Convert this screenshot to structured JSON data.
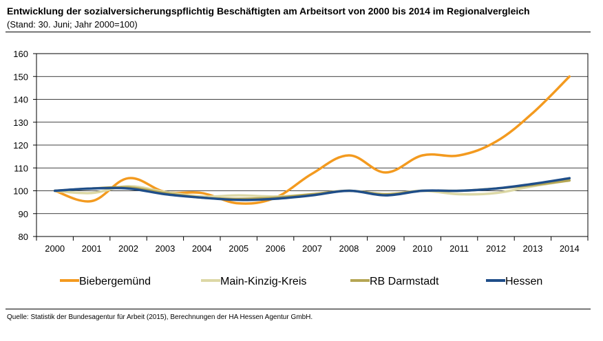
{
  "title": "Entwicklung der sozialversicherungspflichtig Beschäftigten am Arbeitsort von 2000 bis 2014 im Regionalvergleich",
  "subtitle": "(Stand: 30. Juni; Jahr 2000=100)",
  "source": "Quelle: Statistik der Bundesagentur für Arbeit (2015), Berechnungen der HA Hessen Agentur GmbH.",
  "chart_data": {
    "type": "line",
    "title": "Entwicklung der sozialversicherungspflichtig Beschäftigten am Arbeitsort von 2000 bis 2014 im Regionalvergleich",
    "subtitle": "(Stand: 30. Juni; Jahr 2000=100)",
    "xlabel": "",
    "ylabel": "",
    "categories": [
      "2000",
      "2001",
      "2002",
      "2003",
      "2004",
      "2005",
      "2006",
      "2007",
      "2008",
      "2009",
      "2010",
      "2011",
      "2012",
      "2013",
      "2014"
    ],
    "ylim": [
      80,
      160
    ],
    "yticks": [
      80,
      90,
      100,
      110,
      120,
      130,
      140,
      150,
      160
    ],
    "grid": "horizontal",
    "legend_position": "bottom",
    "series": [
      {
        "name": "Biebergemünd",
        "color": "#F39A1F",
        "values": [
          100,
          95.5,
          105.5,
          99.5,
          99,
          94.5,
          97,
          107.5,
          115.5,
          108,
          115.5,
          115.5,
          121.5,
          134,
          150
        ]
      },
      {
        "name": "Main-Kinzig-Kreis",
        "color": "#DCD8A6",
        "values": [
          100,
          99,
          102,
          99.5,
          97.5,
          98,
          97.5,
          98.5,
          100,
          98.5,
          100,
          98.5,
          99,
          102,
          104.5
        ]
      },
      {
        "name": "RB Darmstadt",
        "color": "#B5A654",
        "values": [
          100,
          101,
          101.5,
          99,
          97,
          96.5,
          97,
          98.5,
          100,
          98.5,
          100,
          100,
          101,
          102.5,
          104.5
        ]
      },
      {
        "name": "Hessen",
        "color": "#1F4E89",
        "values": [
          100,
          101,
          101,
          98.5,
          97,
          96,
          96.5,
          98,
          100,
          98,
          100,
          100,
          101,
          103,
          105.5
        ]
      }
    ]
  }
}
